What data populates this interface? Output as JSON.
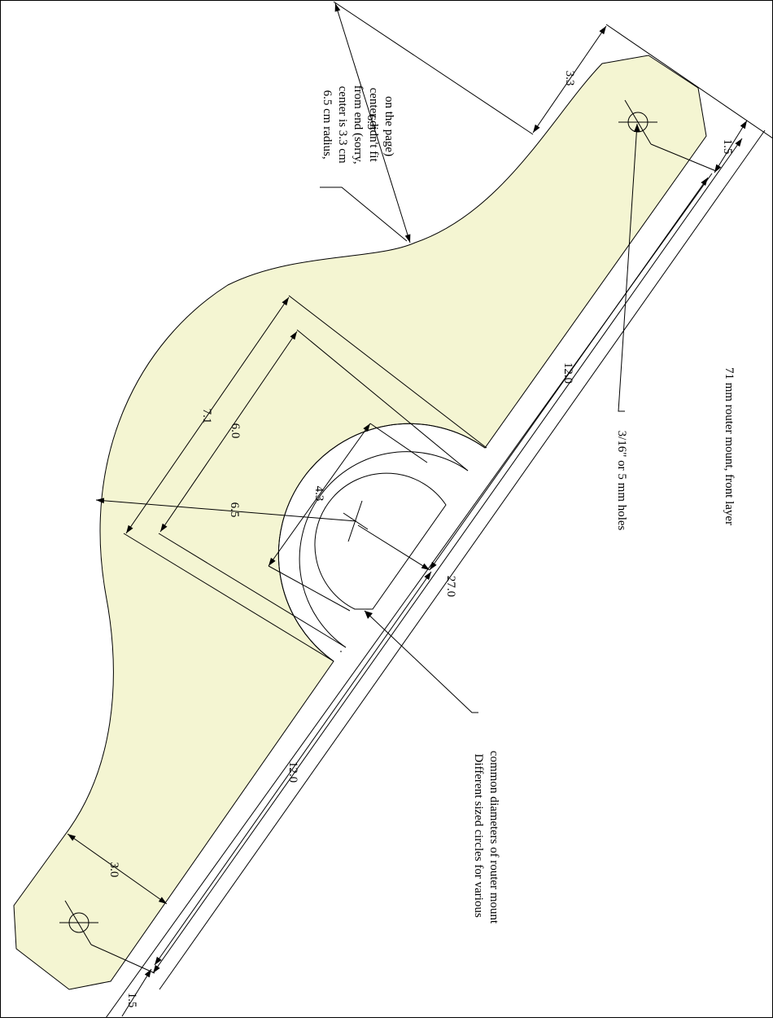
{
  "colors": {
    "part_fill": "#f4f5d2",
    "line": "#000000",
    "background": "#ffffff"
  },
  "title": "71 mm router mount, front layer",
  "dimensions": {
    "top_offset": "3.3",
    "arc_radius": "6.5",
    "top_end_width": "1.5",
    "upper_length": "12.0",
    "overall_length": "27.0",
    "lower_length": "12.0",
    "bottom_end_width": "1.5",
    "bottom_foot_width": "3.0",
    "outer_circle_diameter": "7.1",
    "middle_circle_diameter": "6.0",
    "outer_radius": "6.5",
    "inner_circle_diameter": "4.3"
  },
  "notes": {
    "arc_note": [
      "6.5 cm radius,",
      "center is 3.3 cm",
      "from end (sorry,",
      "center didn't fit",
      "on the page)"
    ],
    "hole_note": "3/16\" or 5 mm holes",
    "circles_note": [
      "Different sized circles for various",
      "common diameters of router mount"
    ]
  }
}
